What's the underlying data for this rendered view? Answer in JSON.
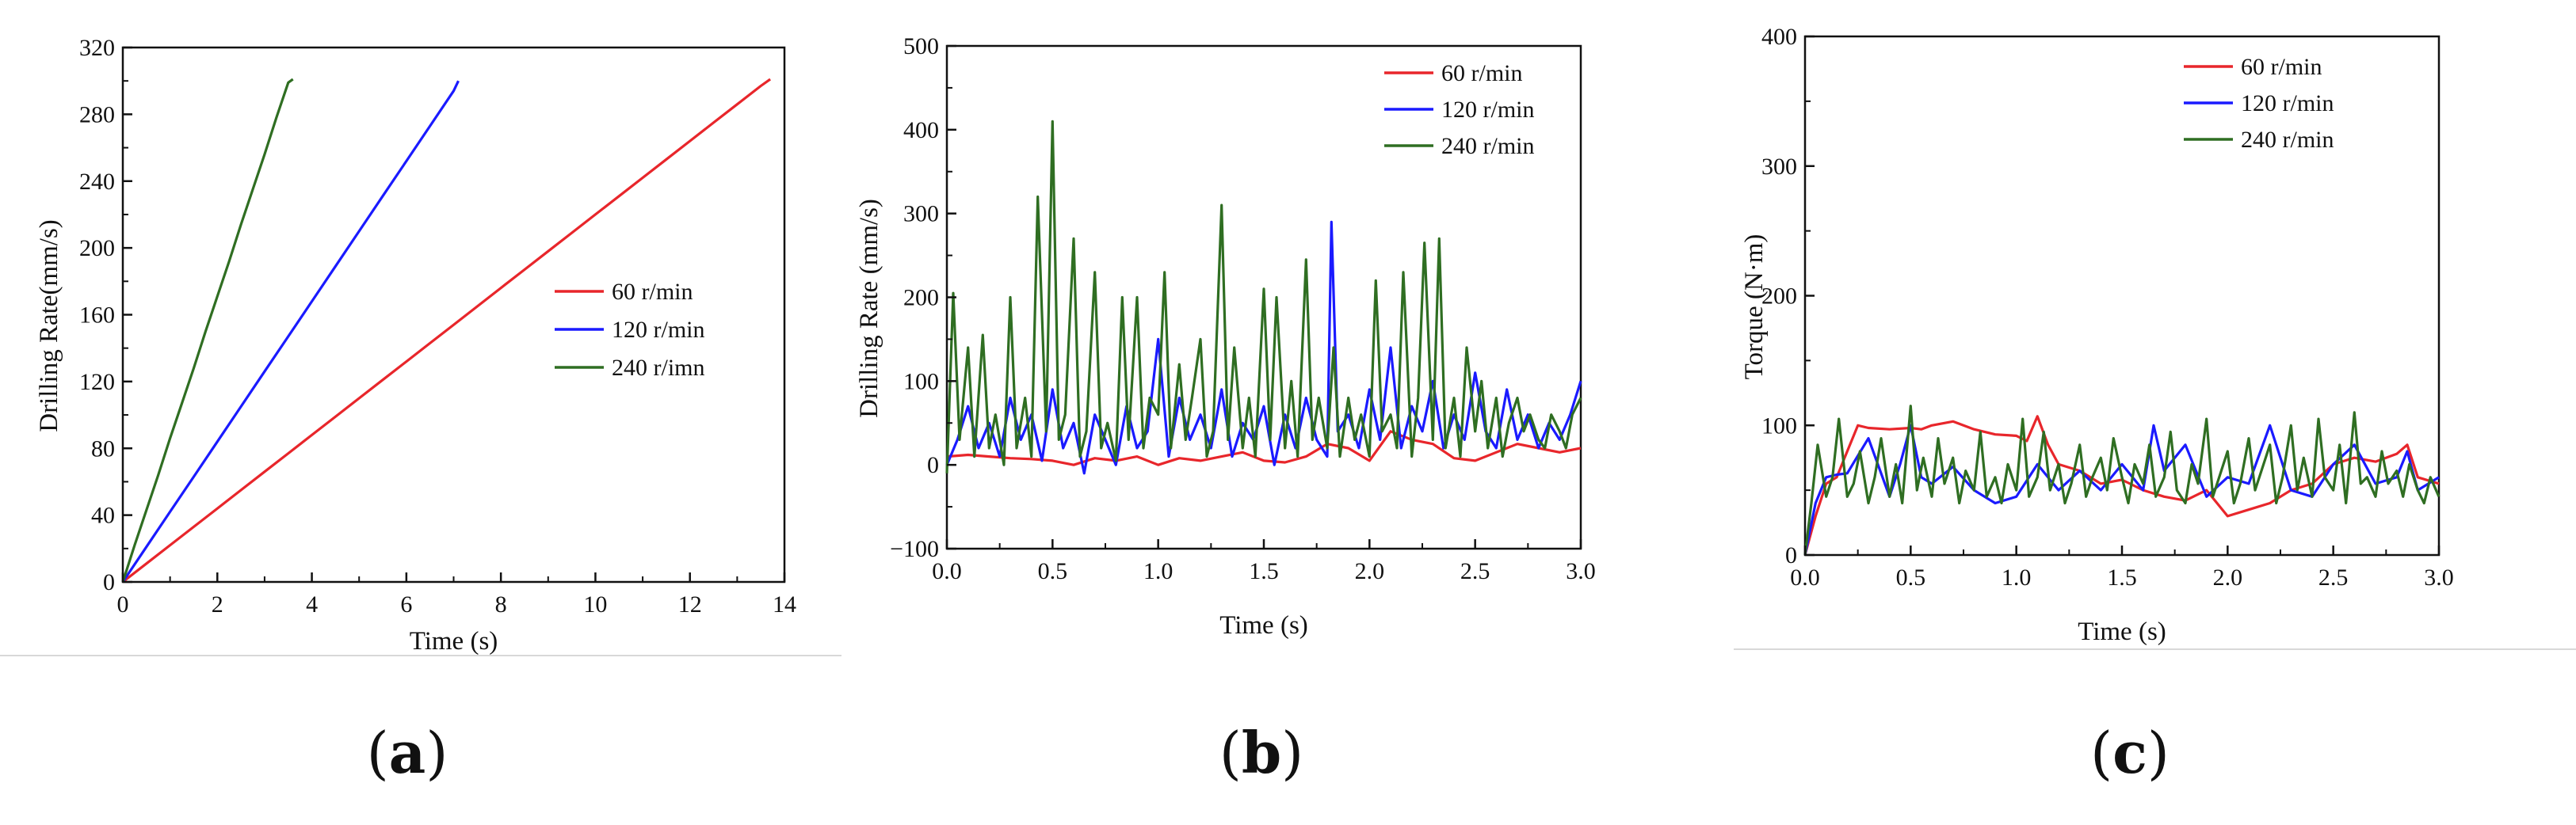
{
  "colors": {
    "series_60": "#e8262b",
    "series_120": "#1a1aff",
    "series_240": "#2f6e22",
    "axis": "#111111",
    "panel_bg_line": "#d8d8d8"
  },
  "panels": [
    {
      "label_open": "(",
      "label_letter": "a",
      "label_close": ")"
    },
    {
      "label_open": "(",
      "label_letter": "b",
      "label_close": ")"
    },
    {
      "label_open": "(",
      "label_letter": "c",
      "label_close": ")"
    }
  ],
  "chart_data": [
    {
      "id": "a",
      "type": "line",
      "title": "",
      "xlabel": "Time (s)",
      "ylabel": "Drilling Rate(mm/s)",
      "xlim": [
        0,
        14
      ],
      "ylim": [
        0,
        320
      ],
      "xticks": [
        0,
        2,
        4,
        6,
        8,
        10,
        12,
        14
      ],
      "xtick_labels": [
        "0",
        "2",
        "4",
        "6",
        "8",
        "10",
        "12",
        "14"
      ],
      "yticks": [
        0,
        40,
        80,
        120,
        160,
        200,
        240,
        280,
        320
      ],
      "ytick_labels": [
        "0",
        "40",
        "80",
        "120",
        "160",
        "200",
        "240",
        "280",
        "320"
      ],
      "legend_position": "center-right",
      "series": [
        {
          "name": "60 r/min",
          "color": "#e8262b",
          "x": [
            0,
            0.5,
            1,
            1.5,
            2,
            2.5,
            3,
            3.5,
            4,
            4.5,
            5,
            5.5,
            6,
            6.5,
            7,
            7.5,
            8,
            8.5,
            9,
            9.5,
            10,
            10.5,
            11,
            11.5,
            12,
            12.5,
            13,
            13.5,
            13.7
          ],
          "y": [
            0,
            11,
            22,
            33,
            44,
            55,
            66,
            77,
            88,
            99,
            110,
            121,
            132,
            143,
            154,
            165,
            176,
            187,
            198,
            209,
            220,
            231,
            242,
            253,
            264,
            275,
            286,
            297,
            301
          ]
        },
        {
          "name": "120 r/min",
          "color": "#1a1aff",
          "x": [
            0,
            0.5,
            1,
            1.5,
            2,
            2.5,
            3,
            3.5,
            4,
            4.5,
            5,
            5.5,
            6,
            6.5,
            7,
            7.1
          ],
          "y": [
            0,
            21,
            42,
            63,
            84,
            105,
            126,
            147,
            168,
            189,
            210,
            231,
            252,
            273,
            294,
            300
          ]
        },
        {
          "name": "240 r/imn",
          "color": "#2f6e22",
          "x": [
            0,
            0.25,
            0.5,
            0.75,
            1,
            1.25,
            1.5,
            1.75,
            2,
            2.25,
            2.5,
            2.75,
            3,
            3.25,
            3.5,
            3.6
          ],
          "y": [
            0,
            22,
            43,
            64,
            86,
            107,
            128,
            150,
            171,
            192,
            214,
            235,
            256,
            278,
            299,
            301
          ]
        }
      ]
    },
    {
      "id": "b",
      "type": "line",
      "title": "",
      "xlabel": "Time (s)",
      "ylabel": "Drilling Rate (mm/s)",
      "xlim": [
        0,
        3
      ],
      "ylim": [
        -100,
        500
      ],
      "xticks": [
        0,
        0.5,
        1,
        1.5,
        2,
        2.5,
        3
      ],
      "xtick_labels": [
        "0.0",
        "0.5",
        "1.0",
        "1.5",
        "2.0",
        "2.5",
        "3.0"
      ],
      "yticks": [
        -100,
        0,
        100,
        200,
        300,
        400,
        500
      ],
      "ytick_labels": [
        "−100",
        "0",
        "100",
        "200",
        "300",
        "400",
        "500"
      ],
      "legend_position": "top-right",
      "series": [
        {
          "name": "60 r/min",
          "color": "#e8262b",
          "x": [
            0,
            0.1,
            0.2,
            0.3,
            0.4,
            0.5,
            0.6,
            0.7,
            0.8,
            0.9,
            1.0,
            1.1,
            1.2,
            1.3,
            1.4,
            1.5,
            1.6,
            1.7,
            1.8,
            1.9,
            2.0,
            2.1,
            2.2,
            2.3,
            2.4,
            2.5,
            2.6,
            2.7,
            2.8,
            2.9,
            3.0
          ],
          "y": [
            10,
            12,
            10,
            8,
            7,
            5,
            0,
            8,
            5,
            10,
            0,
            8,
            5,
            10,
            15,
            5,
            3,
            10,
            25,
            20,
            5,
            40,
            30,
            25,
            8,
            5,
            15,
            25,
            20,
            15,
            20
          ]
        },
        {
          "name": "120 r/min",
          "color": "#1a1aff",
          "x": [
            0,
            0.05,
            0.1,
            0.15,
            0.2,
            0.25,
            0.3,
            0.35,
            0.4,
            0.45,
            0.5,
            0.55,
            0.6,
            0.65,
            0.7,
            0.75,
            0.8,
            0.85,
            0.9,
            0.95,
            1.0,
            1.05,
            1.1,
            1.15,
            1.2,
            1.25,
            1.3,
            1.35,
            1.4,
            1.45,
            1.5,
            1.55,
            1.6,
            1.65,
            1.7,
            1.75,
            1.8,
            1.82,
            1.85,
            1.9,
            1.95,
            2.0,
            2.05,
            2.1,
            2.15,
            2.2,
            2.25,
            2.3,
            2.35,
            2.4,
            2.45,
            2.5,
            2.55,
            2.6,
            2.65,
            2.7,
            2.75,
            2.8,
            2.85,
            2.9,
            2.95,
            3.0
          ],
          "y": [
            0,
            30,
            70,
            20,
            50,
            10,
            80,
            30,
            60,
            5,
            90,
            20,
            50,
            -10,
            60,
            30,
            0,
            70,
            20,
            40,
            150,
            10,
            80,
            30,
            60,
            20,
            90,
            10,
            50,
            30,
            70,
            0,
            60,
            20,
            80,
            30,
            10,
            290,
            40,
            60,
            20,
            90,
            30,
            140,
            20,
            70,
            40,
            100,
            20,
            60,
            30,
            110,
            40,
            20,
            90,
            30,
            60,
            20,
            50,
            30,
            60,
            100
          ]
        },
        {
          "name": "240 r/min",
          "color": "#2f6e22",
          "x": [
            0,
            0.03,
            0.06,
            0.1,
            0.13,
            0.17,
            0.2,
            0.23,
            0.27,
            0.3,
            0.33,
            0.37,
            0.4,
            0.43,
            0.47,
            0.5,
            0.53,
            0.56,
            0.6,
            0.63,
            0.66,
            0.7,
            0.73,
            0.76,
            0.8,
            0.83,
            0.86,
            0.9,
            0.93,
            0.96,
            1.0,
            1.03,
            1.06,
            1.1,
            1.13,
            1.16,
            1.2,
            1.23,
            1.26,
            1.3,
            1.33,
            1.36,
            1.4,
            1.43,
            1.46,
            1.5,
            1.53,
            1.56,
            1.6,
            1.63,
            1.66,
            1.7,
            1.73,
            1.76,
            1.8,
            1.83,
            1.86,
            1.9,
            1.93,
            1.96,
            2.0,
            2.03,
            2.06,
            2.1,
            2.13,
            2.16,
            2.2,
            2.23,
            2.26,
            2.3,
            2.33,
            2.36,
            2.4,
            2.43,
            2.46,
            2.5,
            2.53,
            2.56,
            2.6,
            2.63,
            2.66,
            2.7,
            2.73,
            2.76,
            2.8,
            2.83,
            2.86,
            2.9,
            2.93,
            2.96,
            3.0
          ],
          "y": [
            -10,
            205,
            30,
            140,
            10,
            155,
            20,
            60,
            0,
            200,
            20,
            80,
            10,
            320,
            40,
            410,
            30,
            60,
            270,
            10,
            40,
            230,
            20,
            50,
            5,
            200,
            30,
            200,
            20,
            80,
            60,
            230,
            20,
            120,
            30,
            80,
            150,
            10,
            40,
            310,
            30,
            140,
            20,
            80,
            10,
            210,
            30,
            200,
            20,
            100,
            10,
            245,
            30,
            80,
            20,
            140,
            10,
            80,
            30,
            60,
            10,
            220,
            40,
            60,
            20,
            230,
            10,
            80,
            265,
            30,
            270,
            20,
            80,
            10,
            140,
            40,
            100,
            20,
            80,
            10,
            50,
            80,
            40,
            60,
            30,
            20,
            60,
            40,
            20,
            60,
            80
          ]
        }
      ]
    },
    {
      "id": "c",
      "type": "line",
      "title": "",
      "xlabel": "Time (s)",
      "ylabel": "Torque (N·m)",
      "xlim": [
        0,
        3
      ],
      "ylim": [
        0,
        400
      ],
      "xticks": [
        0,
        0.5,
        1,
        1.5,
        2,
        2.5,
        3
      ],
      "xtick_labels": [
        "0.0",
        "0.5",
        "1.0",
        "1.5",
        "2.0",
        "2.5",
        "3.0"
      ],
      "yticks": [
        0,
        100,
        200,
        300,
        400
      ],
      "ytick_labels": [
        "0",
        "100",
        "200",
        "300",
        "400"
      ],
      "legend_position": "top-right",
      "series": [
        {
          "name": "60 r/min",
          "color": "#e8262b",
          "x": [
            0,
            0.05,
            0.1,
            0.15,
            0.2,
            0.25,
            0.3,
            0.4,
            0.5,
            0.55,
            0.6,
            0.7,
            0.8,
            0.9,
            1.0,
            1.05,
            1.1,
            1.15,
            1.2,
            1.3,
            1.4,
            1.5,
            1.6,
            1.7,
            1.8,
            1.9,
            2.0,
            2.1,
            2.2,
            2.3,
            2.4,
            2.5,
            2.6,
            2.7,
            2.8,
            2.85,
            2.9,
            3.0
          ],
          "y": [
            0,
            30,
            55,
            60,
            80,
            100,
            98,
            97,
            98,
            97,
            100,
            103,
            97,
            93,
            92,
            88,
            107,
            85,
            70,
            65,
            55,
            58,
            50,
            45,
            42,
            50,
            30,
            35,
            40,
            50,
            55,
            70,
            75,
            72,
            78,
            85,
            60,
            55
          ]
        },
        {
          "name": "120 r/min",
          "color": "#1a1aff",
          "x": [
            0,
            0.05,
            0.1,
            0.15,
            0.2,
            0.3,
            0.4,
            0.45,
            0.5,
            0.55,
            0.6,
            0.7,
            0.8,
            0.9,
            1.0,
            1.1,
            1.2,
            1.3,
            1.4,
            1.5,
            1.6,
            1.65,
            1.7,
            1.8,
            1.9,
            2.0,
            2.1,
            2.2,
            2.3,
            2.4,
            2.5,
            2.6,
            2.7,
            2.8,
            2.85,
            2.9,
            3.0
          ],
          "y": [
            0,
            40,
            60,
            62,
            63,
            90,
            45,
            70,
            100,
            60,
            55,
            68,
            50,
            40,
            45,
            70,
            50,
            65,
            50,
            70,
            50,
            100,
            65,
            85,
            45,
            60,
            55,
            100,
            50,
            45,
            70,
            85,
            55,
            60,
            80,
            50,
            60
          ]
        },
        {
          "name": "240 r/min",
          "color": "#2f6e22",
          "x": [
            0,
            0.03,
            0.06,
            0.1,
            0.13,
            0.16,
            0.2,
            0.23,
            0.26,
            0.3,
            0.33,
            0.36,
            0.4,
            0.43,
            0.46,
            0.5,
            0.53,
            0.56,
            0.6,
            0.63,
            0.66,
            0.7,
            0.73,
            0.76,
            0.8,
            0.83,
            0.86,
            0.9,
            0.93,
            0.96,
            1.0,
            1.03,
            1.06,
            1.1,
            1.13,
            1.16,
            1.2,
            1.23,
            1.26,
            1.3,
            1.33,
            1.36,
            1.4,
            1.43,
            1.46,
            1.5,
            1.53,
            1.56,
            1.6,
            1.63,
            1.66,
            1.7,
            1.73,
            1.76,
            1.8,
            1.83,
            1.86,
            1.9,
            1.93,
            1.96,
            2.0,
            2.03,
            2.06,
            2.1,
            2.13,
            2.16,
            2.2,
            2.23,
            2.26,
            2.3,
            2.33,
            2.36,
            2.4,
            2.43,
            2.46,
            2.5,
            2.53,
            2.56,
            2.6,
            2.63,
            2.66,
            2.7,
            2.73,
            2.76,
            2.8,
            2.83,
            2.86,
            2.9,
            2.93,
            2.96,
            3.0
          ],
          "y": [
            0,
            40,
            85,
            45,
            60,
            105,
            45,
            55,
            80,
            40,
            60,
            90,
            45,
            70,
            40,
            115,
            50,
            75,
            45,
            90,
            55,
            75,
            40,
            65,
            50,
            95,
            45,
            60,
            40,
            70,
            50,
            105,
            45,
            60,
            95,
            50,
            70,
            40,
            55,
            85,
            45,
            60,
            75,
            50,
            90,
            60,
            40,
            70,
            55,
            85,
            45,
            60,
            95,
            50,
            40,
            70,
            55,
            105,
            45,
            60,
            80,
            40,
            55,
            90,
            50,
            65,
            85,
            40,
            60,
            100,
            50,
            75,
            45,
            105,
            60,
            50,
            85,
            40,
            110,
            55,
            60,
            45,
            80,
            55,
            65,
            45,
            70,
            50,
            40,
            60,
            45
          ]
        }
      ]
    }
  ]
}
